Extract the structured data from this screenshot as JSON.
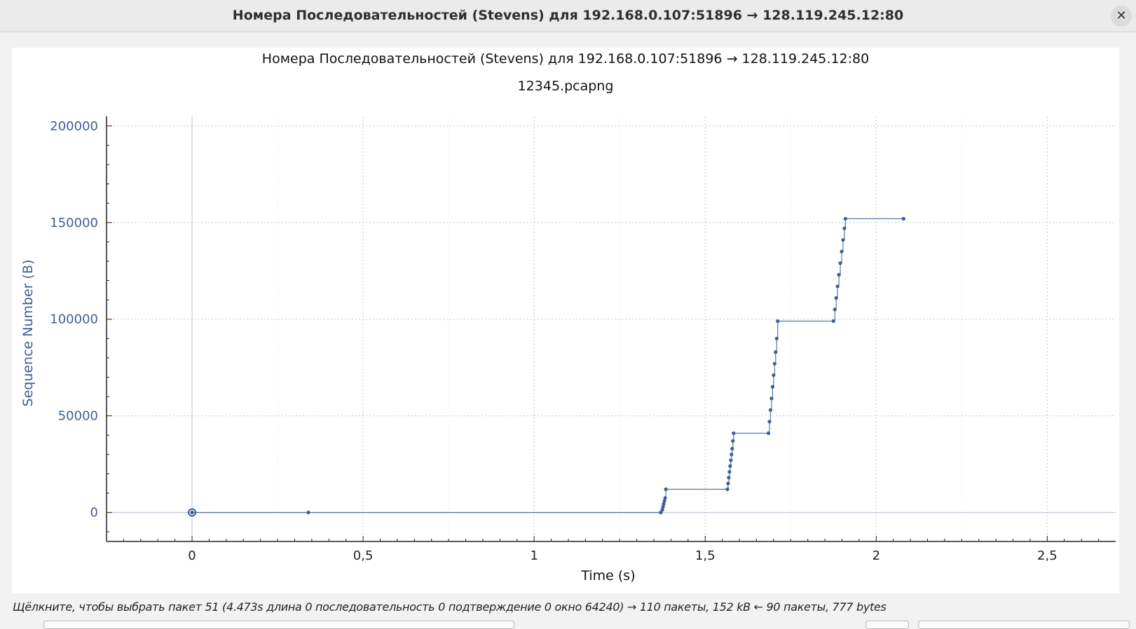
{
  "window": {
    "title": "Номера Последовательностей (Stevens) для 192.168.0.107:51896 → 128.119.245.12:80",
    "close_label": "✕"
  },
  "status_text": "Щёлкните, чтобы выбрать пакет 51 (4.473s длина 0 последовательность 0 подтверждение 0 окно 64240) → 110 пакеты, 152 kB ← 90 пакеты, 777 bytes",
  "colors": {
    "series": "#3d5f96",
    "axis_label": "#3d5f96",
    "grid": "#c8c8c8"
  },
  "chart_data": {
    "type": "scatter",
    "title": "Номера Последовательностей (Stevens) для 192.168.0.107:51896 → 128.119.245.12:80",
    "subtitle": "12345.pcapng",
    "xlabel": "Time (s)",
    "ylabel": "Sequence Number (B)",
    "xlim": [
      -0.25,
      2.7
    ],
    "ylim": [
      -15000,
      205000
    ],
    "xticks": [
      0,
      0.5,
      1,
      1.5,
      2,
      2.5
    ],
    "xtick_labels": [
      "0",
      "0,5",
      "1",
      "1,5",
      "2",
      "2,5"
    ],
    "yticks": [
      0,
      50000,
      100000,
      150000,
      200000
    ],
    "ytick_labels": [
      "0",
      "50000",
      "100000",
      "150000",
      "200000"
    ],
    "grid": true,
    "highlighted_point": [
      0,
      0
    ],
    "series": [
      {
        "x": [
          0,
          0.34,
          1.37,
          1.375,
          1.377,
          1.379,
          1.381,
          1.383,
          1.385,
          1.565,
          1.567,
          1.569,
          1.571,
          1.573,
          1.575,
          1.577,
          1.579,
          1.581,
          1.583,
          1.685,
          1.688,
          1.691,
          1.694,
          1.697,
          1.7,
          1.703,
          1.706,
          1.709,
          1.712,
          1.875,
          1.879,
          1.883,
          1.887,
          1.891,
          1.895,
          1.899,
          1.903,
          1.907,
          1.91,
          2.08
        ],
        "y": [
          0,
          0,
          0,
          1500,
          3000,
          4500,
          6000,
          7500,
          12000,
          12000,
          15000,
          18000,
          21000,
          24000,
          27000,
          30000,
          33000,
          37000,
          41000,
          41000,
          47000,
          53000,
          59000,
          65000,
          71000,
          77000,
          83000,
          90000,
          99000,
          99000,
          105000,
          111000,
          117000,
          123000,
          129000,
          135000,
          141000,
          147000,
          152000,
          152000
        ]
      }
    ]
  }
}
